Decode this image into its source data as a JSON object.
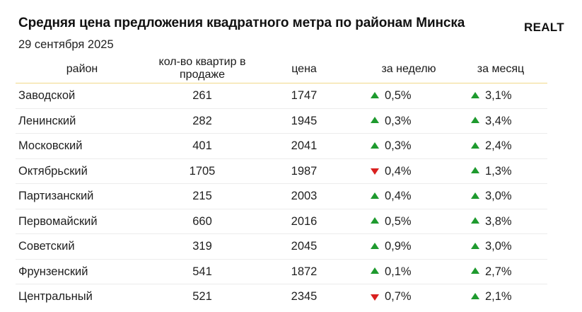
{
  "header": {
    "title": "Средняя цена предложения квадратного метра по районам Минска",
    "date": "29 сентября 2025",
    "logo": "REALT"
  },
  "colors": {
    "up": "#1e9a2e",
    "down": "#d9201f",
    "header_line": "#f2d98a"
  },
  "chart_data": {
    "type": "table",
    "columns": [
      "район",
      "кол-во квартир в продаже",
      "цена",
      "за неделю",
      "за месяц"
    ],
    "rows": [
      {
        "district": "Заводской",
        "count": "261",
        "price": "1747",
        "week": "0,5%",
        "week_dir": "up",
        "month": "3,1%",
        "month_dir": "up"
      },
      {
        "district": "Ленинский",
        "count": "282",
        "price": "1945",
        "week": "0,3%",
        "week_dir": "up",
        "month": "3,4%",
        "month_dir": "up"
      },
      {
        "district": "Московский",
        "count": "401",
        "price": "2041",
        "week": "0,3%",
        "week_dir": "up",
        "month": "2,4%",
        "month_dir": "up"
      },
      {
        "district": "Октябрьский",
        "count": "1705",
        "price": "1987",
        "week": "0,4%",
        "week_dir": "down",
        "month": "1,3%",
        "month_dir": "up"
      },
      {
        "district": "Партизанский",
        "count": "215",
        "price": "2003",
        "week": "0,4%",
        "week_dir": "up",
        "month": "3,0%",
        "month_dir": "up"
      },
      {
        "district": "Первомайский",
        "count": "660",
        "price": "2016",
        "week": "0,5%",
        "week_dir": "up",
        "month": "3,8%",
        "month_dir": "up"
      },
      {
        "district": "Советский",
        "count": "319",
        "price": "2045",
        "week": "0,9%",
        "week_dir": "up",
        "month": "3,0%",
        "month_dir": "up"
      },
      {
        "district": "Фрунзенский",
        "count": "541",
        "price": "1872",
        "week": "0,1%",
        "week_dir": "up",
        "month": "2,7%",
        "month_dir": "up"
      },
      {
        "district": "Центральный",
        "count": "521",
        "price": "2345",
        "week": "0,7%",
        "week_dir": "down",
        "month": "2,1%",
        "month_dir": "up"
      }
    ]
  }
}
